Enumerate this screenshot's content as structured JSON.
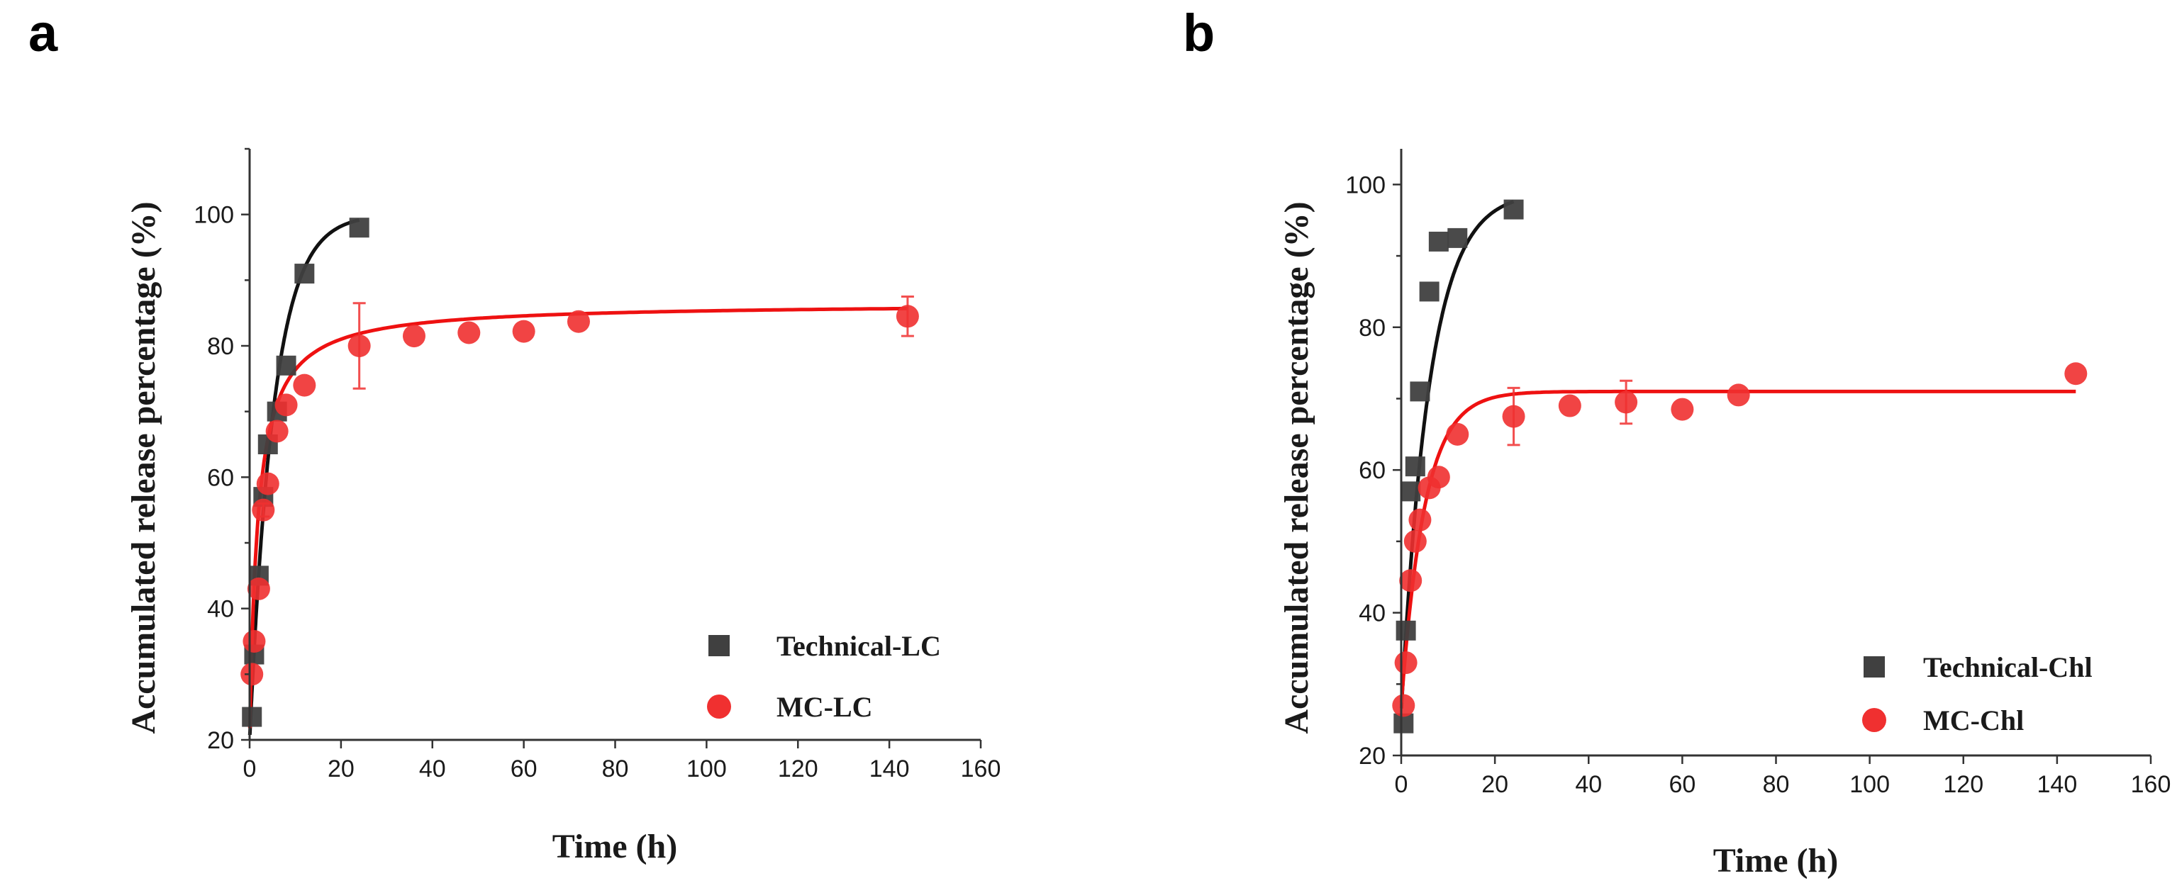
{
  "figure": {
    "panel_letters": [
      "a",
      "b"
    ]
  },
  "chart_data": [
    {
      "panel": "a",
      "type": "scatter",
      "xlabel": "Time (h)",
      "ylabel": "Accumulated release percentage (%)",
      "xlim": [
        0,
        160
      ],
      "ylim": [
        20,
        110
      ],
      "xticks": [
        "0",
        "20",
        "40",
        "60",
        "80",
        "100",
        "120",
        "140",
        "160"
      ],
      "yticks": [
        "20",
        "40",
        "60",
        "80",
        "100"
      ],
      "legend_position": "bottom-right",
      "series": [
        {
          "name": "Technical-LC",
          "color": "#404040",
          "marker": "square",
          "x": [
            0.5,
            1,
            2,
            3,
            4,
            6,
            8,
            12,
            24
          ],
          "y": [
            23.5,
            33,
            45,
            57,
            65,
            70,
            77,
            91,
            98
          ],
          "fit": {
            "model": "first-order",
            "y0": 20,
            "ymax": 100,
            "k": 0.19,
            "xmax": 24
          }
        },
        {
          "name": "MC-LC",
          "color": "#f03030",
          "marker": "circle",
          "x": [
            0.5,
            1,
            2,
            3,
            4,
            6,
            8,
            12,
            24,
            36,
            48,
            60,
            72,
            144
          ],
          "y": [
            30,
            35,
            43,
            55,
            59,
            67,
            71,
            74,
            80,
            81.5,
            82,
            82.2,
            83.7,
            84.5
          ],
          "err": [
            0,
            0,
            0,
            1,
            0,
            0,
            0,
            0,
            6.5,
            0,
            0,
            0,
            0,
            3
          ],
          "fit": {
            "model": "hyperbolic",
            "y0": 20,
            "ymax": 86.5,
            "k": 1.8,
            "xmax": 144
          }
        }
      ]
    },
    {
      "panel": "b",
      "type": "scatter",
      "xlabel": "Time (h)",
      "ylabel": "Accumulated release percentage (%)",
      "xlim": [
        0,
        160
      ],
      "ylim": [
        20,
        105
      ],
      "xticks": [
        "0",
        "20",
        "40",
        "60",
        "80",
        "100",
        "120",
        "140",
        "160"
      ],
      "yticks": [
        "20",
        "40",
        "60",
        "80",
        "100"
      ],
      "legend_position": "bottom-right",
      "series": [
        {
          "name": "Technical-Chl",
          "color": "#404040",
          "marker": "square",
          "x": [
            0.5,
            1,
            2,
            3,
            4,
            6,
            8,
            12,
            24
          ],
          "y": [
            24.5,
            37.5,
            57,
            60.5,
            71,
            85,
            92,
            92.5,
            96.5
          ],
          "fit": {
            "model": "first-order",
            "y0": 26,
            "ymax": 99,
            "k": 0.165,
            "xmax": 24
          }
        },
        {
          "name": "MC-Chl",
          "color": "#f03030",
          "marker": "circle",
          "x": [
            0.5,
            1,
            2,
            3,
            4,
            6,
            8,
            12,
            24,
            36,
            48,
            60,
            72,
            144
          ],
          "y": [
            27,
            33,
            44.5,
            50,
            53,
            57.5,
            59,
            65,
            67.5,
            69,
            69.5,
            68.5,
            70.5,
            73.5
          ],
          "err": [
            0,
            0,
            0,
            0,
            0,
            0,
            0,
            0,
            4,
            0,
            3,
            0,
            0,
            0
          ],
          "fit": {
            "model": "first-order",
            "y0": 27,
            "ymax": 71,
            "k": 0.2,
            "xmax": 144
          }
        }
      ]
    }
  ]
}
